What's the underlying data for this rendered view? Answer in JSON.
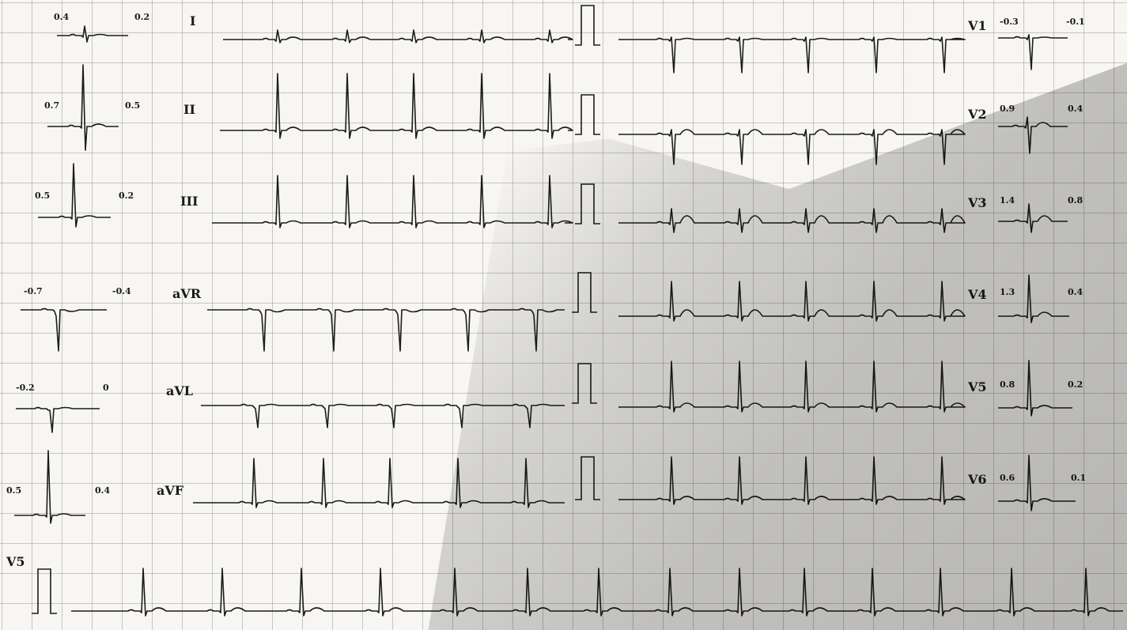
{
  "ecg": {
    "leads": {
      "I": "I",
      "II": "II",
      "III": "III",
      "aVR": "aVR",
      "aVL": "aVL",
      "aVF": "aVF",
      "V1": "V1",
      "V2": "V2",
      "V3": "V3",
      "V4": "V4",
      "V5": "V5",
      "V6": "V6",
      "rhythm": "V5"
    },
    "left_values": {
      "I": [
        "0.4",
        "0.2"
      ],
      "II": [
        "0.7",
        "0.5"
      ],
      "III": [
        "0.5",
        "0.2"
      ],
      "aVR": [
        "-0.7",
        "-0.4"
      ],
      "aVL": [
        "-0.2",
        "0"
      ],
      "aVF": [
        "0.5",
        "0.4"
      ]
    },
    "right_values": {
      "V1": [
        "-0.3",
        "-0.1"
      ],
      "V2": [
        "0.9",
        "0.4"
      ],
      "V3": [
        "1.4",
        "0.8"
      ],
      "V4": [
        "1.3",
        "0.4"
      ],
      "V5": [
        "0.8",
        "0.2"
      ],
      "V6": [
        "0.6",
        "0.1"
      ]
    },
    "colors": {
      "trace": "#1c1c1c",
      "grid": "#8a8a8a",
      "paper": "#f7f6f2"
    }
  }
}
